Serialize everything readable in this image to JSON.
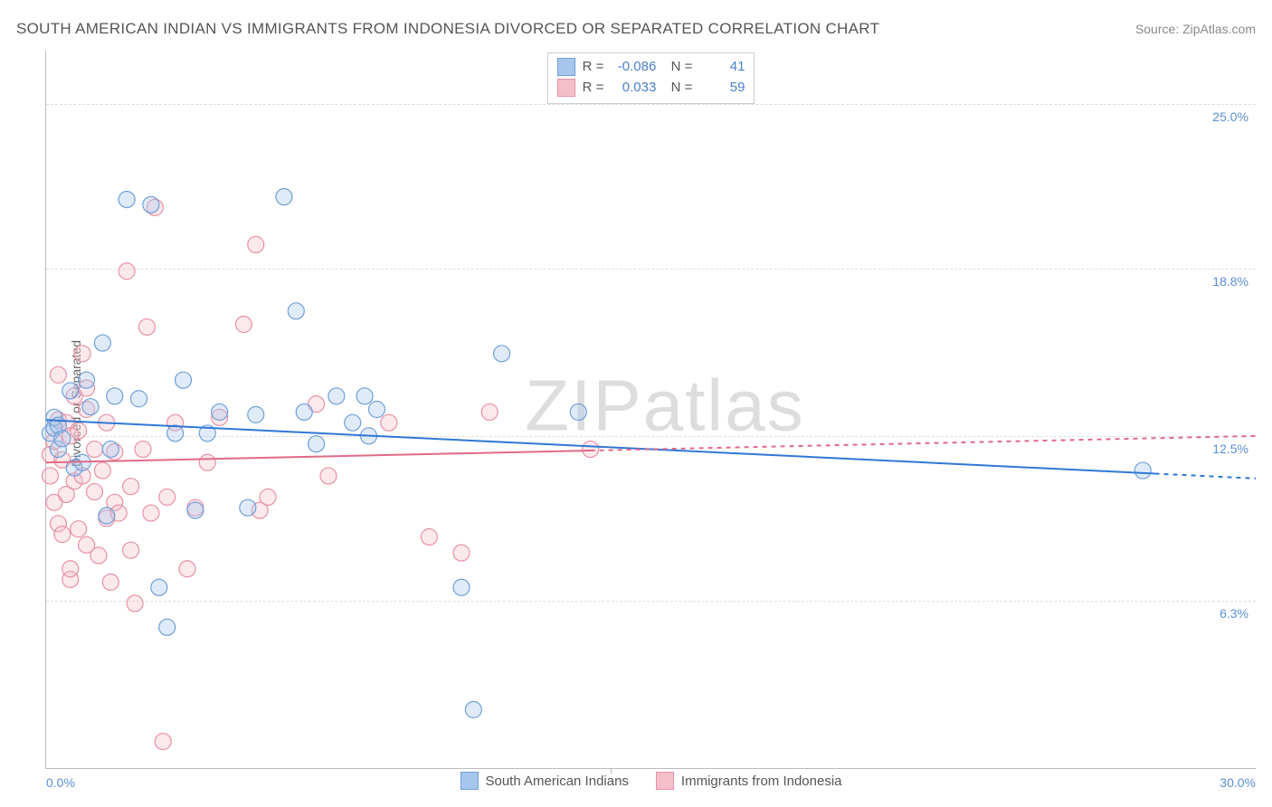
{
  "title": "SOUTH AMERICAN INDIAN VS IMMIGRANTS FROM INDONESIA DIVORCED OR SEPARATED CORRELATION CHART",
  "source_label": "Source: ZipAtlas.com",
  "ylabel": "Divorced or Separated",
  "watermark": {
    "part1": "ZIP",
    "part2": "atlas"
  },
  "chart": {
    "type": "scatter",
    "background_color": "#ffffff",
    "grid_color": "#dddddd",
    "axis_color": "#bbbbbb",
    "tick_label_color": "#5b8fd6",
    "text_color": "#555555",
    "xlim": [
      0,
      30
    ],
    "ylim": [
      0,
      27
    ],
    "xticks": [
      {
        "value": 0,
        "label": "0.0%"
      },
      {
        "value": 30,
        "label": "30.0%"
      }
    ],
    "yticks": [
      {
        "value": 6.3,
        "label": "6.3%"
      },
      {
        "value": 12.5,
        "label": "12.5%"
      },
      {
        "value": 18.8,
        "label": "18.8%"
      },
      {
        "value": 25.0,
        "label": "25.0%"
      }
    ],
    "x_center_tick": 14,
    "marker_radius": 9,
    "marker_fill_opacity": 0.35,
    "marker_stroke_width": 1.2,
    "line_width": 2
  },
  "series": [
    {
      "id": "south_american_indians",
      "label": "South American Indians",
      "color_fill": "#a7c6ed",
      "color_stroke": "#6f9fd8",
      "line_color": "#2f78d6",
      "R": "-0.086",
      "N": "41",
      "trend": {
        "x1": 0,
        "y1": 13.1,
        "x2": 30,
        "y2": 10.9,
        "solid_until_x": 27.5
      },
      "points": [
        [
          0.1,
          12.6
        ],
        [
          0.2,
          12.8
        ],
        [
          0.2,
          13.2
        ],
        [
          0.3,
          12.0
        ],
        [
          0.3,
          12.9
        ],
        [
          0.4,
          12.4
        ],
        [
          0.6,
          14.2
        ],
        [
          0.7,
          11.3
        ],
        [
          0.9,
          11.5
        ],
        [
          1.0,
          14.6
        ],
        [
          1.1,
          13.6
        ],
        [
          1.4,
          16.0
        ],
        [
          1.5,
          9.5
        ],
        [
          1.6,
          12.0
        ],
        [
          1.7,
          14.0
        ],
        [
          2.0,
          21.4
        ],
        [
          2.3,
          13.9
        ],
        [
          2.6,
          21.2
        ],
        [
          2.8,
          6.8
        ],
        [
          3.0,
          5.3
        ],
        [
          3.2,
          12.6
        ],
        [
          3.4,
          14.6
        ],
        [
          3.7,
          9.7
        ],
        [
          4.0,
          12.6
        ],
        [
          4.3,
          13.4
        ],
        [
          5.0,
          9.8
        ],
        [
          5.2,
          13.3
        ],
        [
          5.9,
          21.5
        ],
        [
          6.2,
          17.2
        ],
        [
          6.4,
          13.4
        ],
        [
          6.7,
          12.2
        ],
        [
          7.2,
          14.0
        ],
        [
          7.6,
          13.0
        ],
        [
          7.9,
          14.0
        ],
        [
          8.0,
          12.5
        ],
        [
          8.2,
          13.5
        ],
        [
          10.3,
          6.8
        ],
        [
          10.6,
          2.2
        ],
        [
          11.3,
          15.6
        ],
        [
          13.2,
          13.4
        ],
        [
          27.2,
          11.2
        ]
      ]
    },
    {
      "id": "immigrants_indonesia",
      "label": "Immigrants from Indonesia",
      "color_fill": "#f4bfca",
      "color_stroke": "#e891a3",
      "line_color": "#e26a87",
      "R": "0.033",
      "N": "59",
      "trend": {
        "x1": 0,
        "y1": 11.5,
        "x2": 30,
        "y2": 12.5,
        "solid_until_x": 13.5
      },
      "points": [
        [
          0.1,
          11.0
        ],
        [
          0.1,
          11.8
        ],
        [
          0.2,
          10.0
        ],
        [
          0.2,
          12.3
        ],
        [
          0.3,
          9.2
        ],
        [
          0.3,
          13.1
        ],
        [
          0.3,
          14.8
        ],
        [
          0.4,
          8.8
        ],
        [
          0.4,
          11.6
        ],
        [
          0.5,
          10.3
        ],
        [
          0.5,
          13.0
        ],
        [
          0.6,
          7.1
        ],
        [
          0.6,
          7.5
        ],
        [
          0.6,
          12.5
        ],
        [
          0.7,
          10.8
        ],
        [
          0.7,
          14.0
        ],
        [
          0.8,
          9.0
        ],
        [
          0.8,
          12.7
        ],
        [
          0.9,
          11.0
        ],
        [
          0.9,
          15.6
        ],
        [
          1.0,
          8.4
        ],
        [
          1.0,
          13.5
        ],
        [
          1.0,
          14.3
        ],
        [
          1.2,
          10.4
        ],
        [
          1.2,
          12.0
        ],
        [
          1.3,
          8.0
        ],
        [
          1.4,
          11.2
        ],
        [
          1.5,
          9.4
        ],
        [
          1.5,
          13.0
        ],
        [
          1.6,
          7.0
        ],
        [
          1.7,
          10.0
        ],
        [
          1.7,
          11.9
        ],
        [
          1.8,
          9.6
        ],
        [
          2.0,
          18.7
        ],
        [
          2.1,
          8.2
        ],
        [
          2.1,
          10.6
        ],
        [
          2.2,
          6.2
        ],
        [
          2.4,
          12.0
        ],
        [
          2.5,
          16.6
        ],
        [
          2.6,
          9.6
        ],
        [
          2.7,
          21.1
        ],
        [
          2.9,
          1.0
        ],
        [
          3.0,
          10.2
        ],
        [
          3.2,
          13.0
        ],
        [
          3.5,
          7.5
        ],
        [
          3.7,
          9.8
        ],
        [
          4.0,
          11.5
        ],
        [
          4.3,
          13.2
        ],
        [
          4.9,
          16.7
        ],
        [
          5.2,
          19.7
        ],
        [
          5.3,
          9.7
        ],
        [
          5.5,
          10.2
        ],
        [
          6.7,
          13.7
        ],
        [
          7.0,
          11.0
        ],
        [
          8.5,
          13.0
        ],
        [
          9.5,
          8.7
        ],
        [
          10.3,
          8.1
        ],
        [
          11.0,
          13.4
        ],
        [
          13.5,
          12.0
        ]
      ]
    }
  ]
}
